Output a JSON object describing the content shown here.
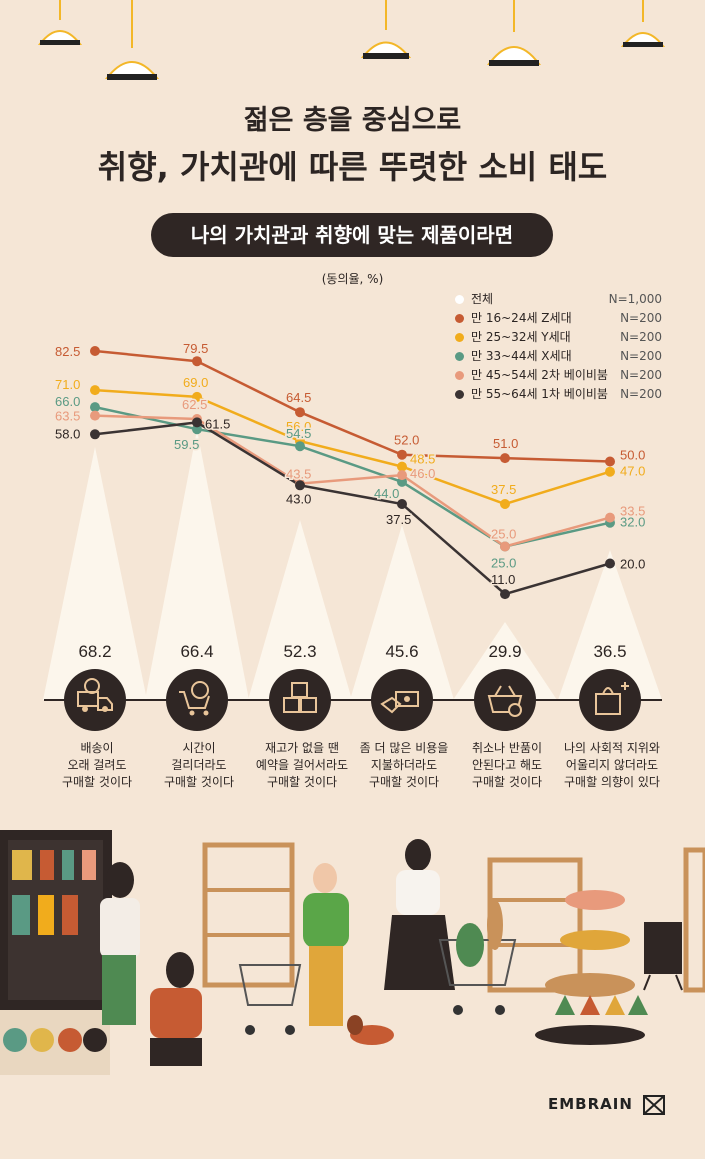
{
  "title_line1": "젊은 층을 중심으로",
  "title_line2": "취향, 가치관에 따른 뚜렷한 소비 태도",
  "subtitle": "나의 가치관과 취향에 맞는 제품이라면",
  "unit": "(동의율, %)",
  "brand": "EMBRAIN",
  "colors": {
    "background": "#f5e6d6",
    "dark": "#2f2624",
    "beam": "#fdf7ee"
  },
  "icons": [
    "delivery-truck-icon",
    "shopping-cart-clock-icon",
    "boxes-icon",
    "money-hand-icon",
    "basket-cancel-icon",
    "shopping-bag-sparkle-icon"
  ],
  "chart_data": {
    "type": "line",
    "unit": "동의율, %",
    "categories": [
      "배송이\n오래 걸려도\n구매할 것이다",
      "시간이\n걸리더라도\n구매할 것이다",
      "재고가 없을 땐\n예약을 걸어서라도\n구매할 것이다",
      "좀 더 많은 비용을\n지불하더라도\n구매할 것이다",
      "취소나 반품이\n안된다고 해도\n구매할 것이다",
      "나의 사회적 지위와\n어울리지 않더라도\n구매할 의향이 있다"
    ],
    "totals": {
      "name": "전체",
      "sample": "N=1,000",
      "values": [
        "68.2",
        "66.4",
        "52.3",
        "45.6",
        "29.9",
        "36.5"
      ],
      "color": "#ffffff"
    },
    "series": [
      {
        "name": "만 16~24세 Z세대",
        "sample": "N=200",
        "color": "#c65b33",
        "values": [
          82.5,
          79.5,
          64.5,
          52.0,
          51.0,
          50.0
        ],
        "labels": [
          "82.5",
          "79.5",
          "64.5",
          "52.0",
          "51.0",
          "50.0"
        ]
      },
      {
        "name": "만 25~32세 Y세대",
        "sample": "N=200",
        "color": "#f1ac1c",
        "values": [
          71.0,
          69.0,
          56.0,
          48.5,
          37.5,
          47.0
        ],
        "labels": [
          "71.0",
          "69.0",
          "56.0",
          "48.5",
          "37.5",
          "47.0"
        ]
      },
      {
        "name": "만 33~44세 X세대",
        "sample": "N=200",
        "color": "#5a9a84",
        "values": [
          66.0,
          59.5,
          54.5,
          44.0,
          25.0,
          32.0
        ],
        "labels": [
          "66.0",
          "59.5",
          "54.5",
          "44.0",
          "25.0",
          "32.0"
        ]
      },
      {
        "name": "만 45~54세 2차 베이비붐",
        "sample": "N=200",
        "color": "#e89a7c",
        "values": [
          63.5,
          62.5,
          43.5,
          46.0,
          25.0,
          33.5
        ],
        "labels": [
          "63.5",
          "62.5",
          "43.5",
          "46.0",
          "25.0",
          "33.5"
        ]
      },
      {
        "name": "만 55~64세 1차 베이비붐",
        "sample": "N=200",
        "color": "#3a3333",
        "values": [
          58.0,
          61.5,
          43.0,
          37.5,
          11.0,
          20.0
        ],
        "labels": [
          "58.0",
          "61.5",
          "43.0",
          "37.5",
          "11.0",
          "20.0"
        ]
      }
    ]
  }
}
